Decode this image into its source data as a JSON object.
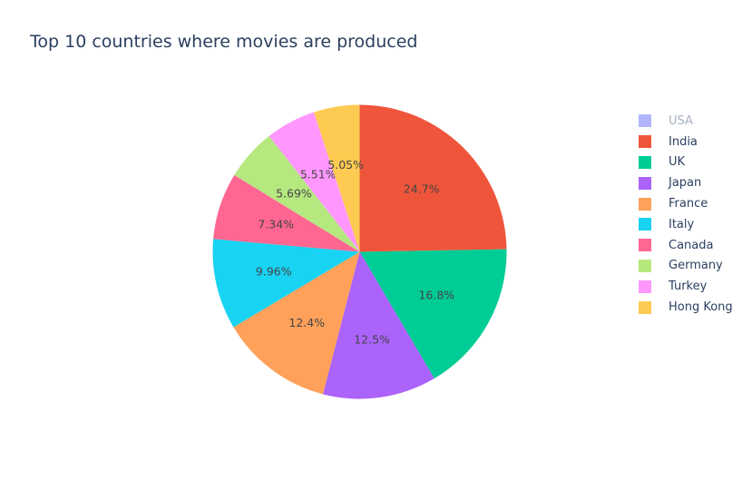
{
  "chart_data": {
    "type": "pie",
    "title": "Top 10 countries where movies are produced",
    "labels": [
      "USA",
      "India",
      "UK",
      "Japan",
      "France",
      "Italy",
      "Canada",
      "Germany",
      "Turkey",
      "Hong Kong"
    ],
    "legend_hidden": [
      "USA"
    ],
    "slices": [
      {
        "label": "India",
        "value": 24.7,
        "display": "24.7%",
        "color": "#EF553B"
      },
      {
        "label": "UK",
        "value": 16.8,
        "display": "16.8%",
        "color": "#00CC96"
      },
      {
        "label": "Japan",
        "value": 12.5,
        "display": "12.5%",
        "color": "#AB63FA"
      },
      {
        "label": "France",
        "value": 12.4,
        "display": "12.4%",
        "color": "#FFA15A"
      },
      {
        "label": "Italy",
        "value": 9.96,
        "display": "9.96%",
        "color": "#19D3F3"
      },
      {
        "label": "Canada",
        "value": 7.34,
        "display": "7.34%",
        "color": "#FF6692"
      },
      {
        "label": "Germany",
        "value": 5.69,
        "display": "5.69%",
        "color": "#B6E880"
      },
      {
        "label": "Turkey",
        "value": 5.51,
        "display": "5.51%",
        "color": "#FF97FF"
      },
      {
        "label": "Hong Kong",
        "value": 5.05,
        "display": "5.05%",
        "color": "#FECB52"
      }
    ],
    "legend": {
      "placement": "right",
      "items": [
        {
          "label": "USA",
          "color": "#636EFA"
        },
        {
          "label": "India",
          "color": "#EF553B"
        },
        {
          "label": "UK",
          "color": "#00CC96"
        },
        {
          "label": "Japan",
          "color": "#AB63FA"
        },
        {
          "label": "France",
          "color": "#FFA15A"
        },
        {
          "label": "Italy",
          "color": "#19D3F3"
        },
        {
          "label": "Canada",
          "color": "#FF6692"
        },
        {
          "label": "Germany",
          "color": "#B6E880"
        },
        {
          "label": "Turkey",
          "color": "#FF97FF"
        },
        {
          "label": "Hong Kong",
          "color": "#FECB52"
        }
      ]
    },
    "direction": "clockwise",
    "start_angle": "12 o'clock"
  }
}
